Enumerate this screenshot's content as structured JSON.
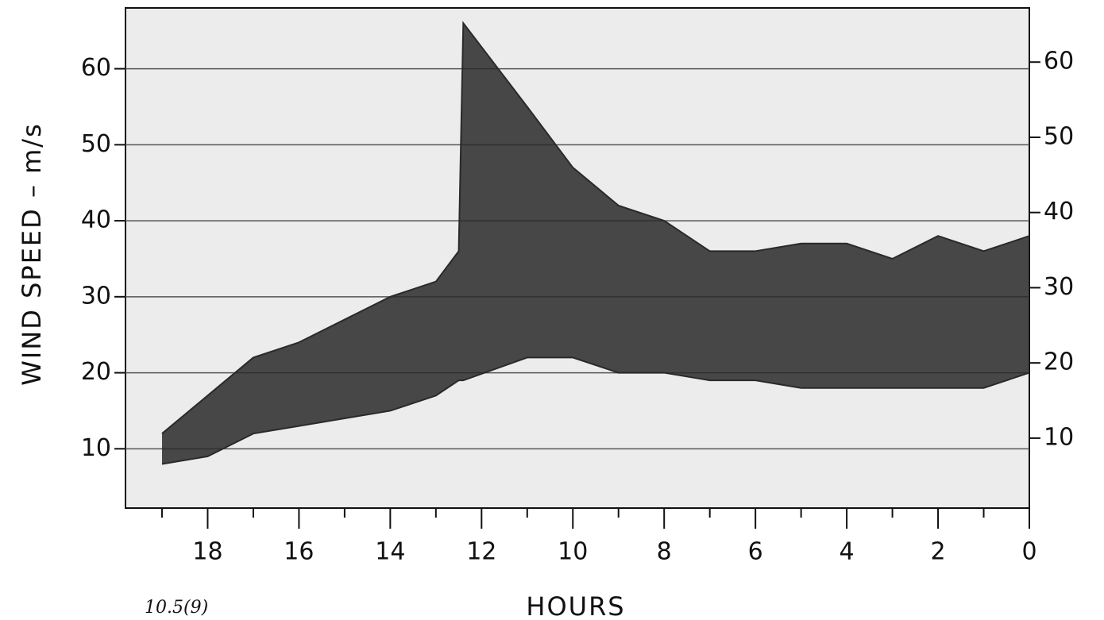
{
  "chart_data": {
    "type": "area",
    "x_label": "HOURS",
    "y_label": "WIND SPEED – m/s",
    "note": "10.5(9)",
    "x": [
      19,
      18,
      17,
      16,
      15,
      14,
      13,
      12.5,
      12.4,
      11,
      10,
      9,
      8,
      7,
      6,
      5,
      4,
      3,
      2,
      1,
      0
    ],
    "series": [
      {
        "color": "#2a2a2a",
        "values": [
          12,
          17,
          22,
          24,
          27,
          30,
          32,
          36,
          66,
          55,
          47,
          42,
          40,
          36,
          36,
          37,
          37,
          35,
          38,
          36,
          38
        ]
      },
      {
        "color": "#2a2a2a",
        "values": [
          8,
          9,
          12,
          13,
          14,
          15,
          17,
          19,
          19,
          22,
          22,
          20,
          20,
          19,
          19,
          18,
          18,
          18,
          18,
          18,
          20
        ]
      }
    ],
    "xlim": [
      19.8,
      0
    ],
    "xticks": [
      18,
      16,
      14,
      12,
      10,
      8,
      6,
      4,
      2,
      0
    ],
    "xminorticks": [
      19,
      17,
      15,
      13,
      11,
      9,
      7,
      5,
      3,
      1
    ],
    "ylim": [
      2.2,
      68
    ],
    "yticks": [
      10,
      20,
      30,
      40,
      50,
      60
    ],
    "y2lim": [
      0.7,
      67.2
    ],
    "y2ticks": [
      10,
      20,
      30,
      40,
      50,
      60
    ],
    "grid": true
  }
}
